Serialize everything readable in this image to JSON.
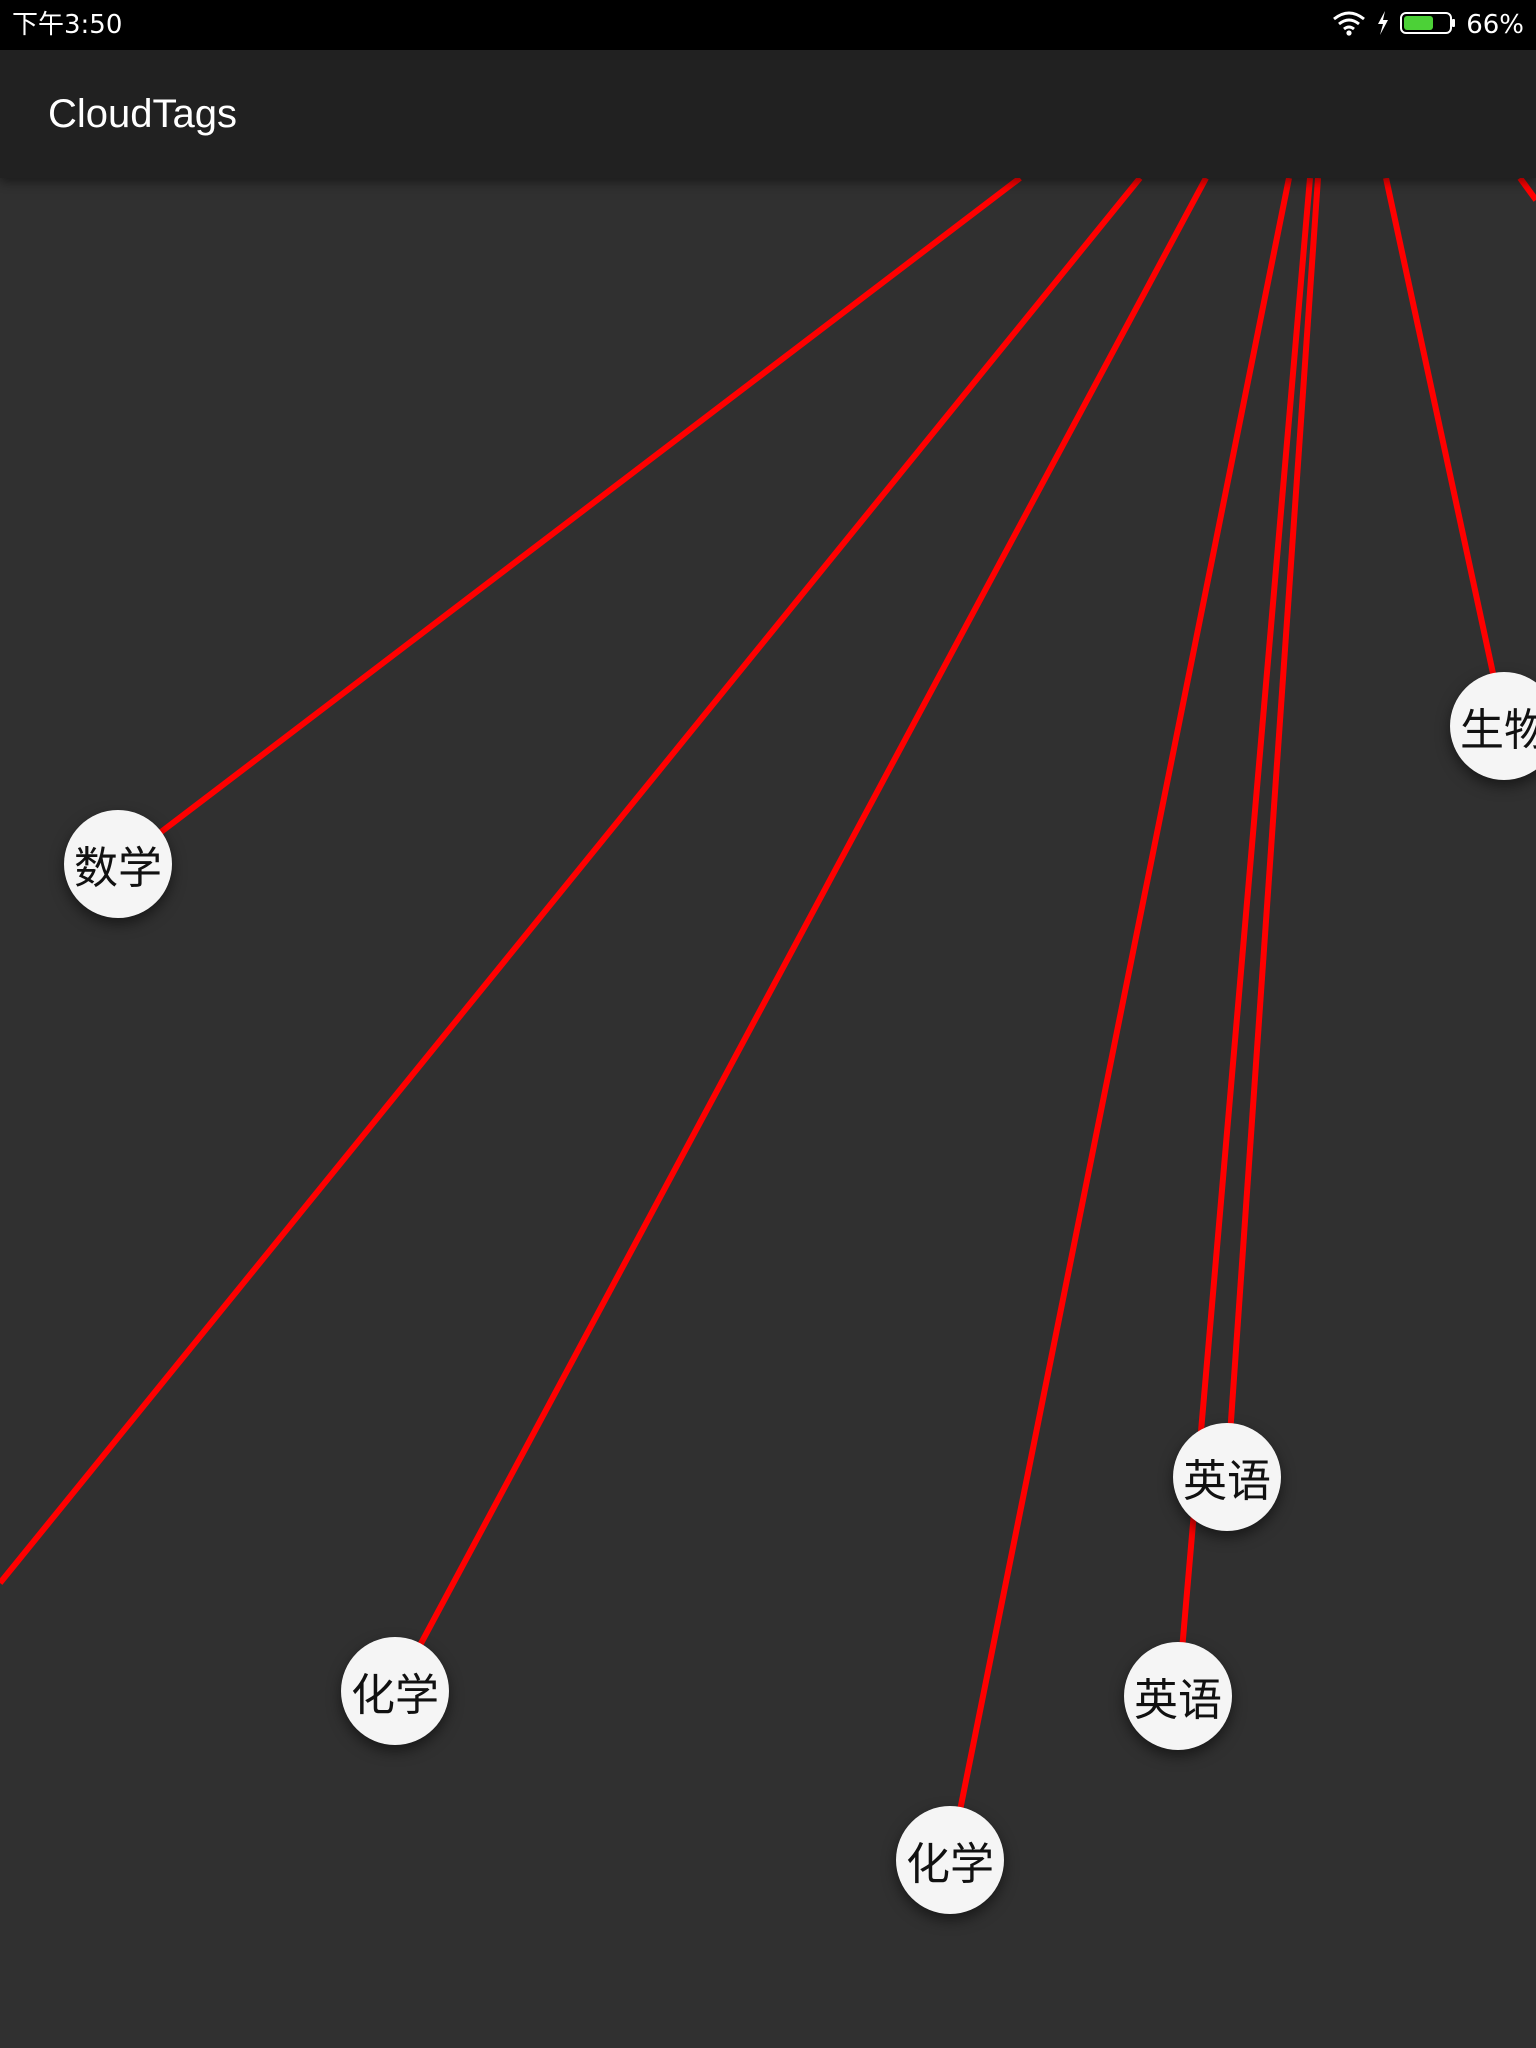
{
  "status_bar": {
    "time": "下午3:50",
    "battery": "66%",
    "icons": [
      "wifi-icon",
      "charging-bolt-icon",
      "battery-icon"
    ],
    "battery_level": 0.66,
    "battery_color": "#4cd137"
  },
  "app_bar": {
    "title": "CloudTags"
  },
  "colors": {
    "line": "#ff0000",
    "background": "#303030",
    "app_bar": "#212121",
    "tag_fill": "#f5f5f5"
  },
  "tags": [
    {
      "label": "数学"
    },
    {
      "label": "生物"
    },
    {
      "label": "英语"
    },
    {
      "label": "化学"
    },
    {
      "label": "英语"
    },
    {
      "label": "化学"
    }
  ]
}
